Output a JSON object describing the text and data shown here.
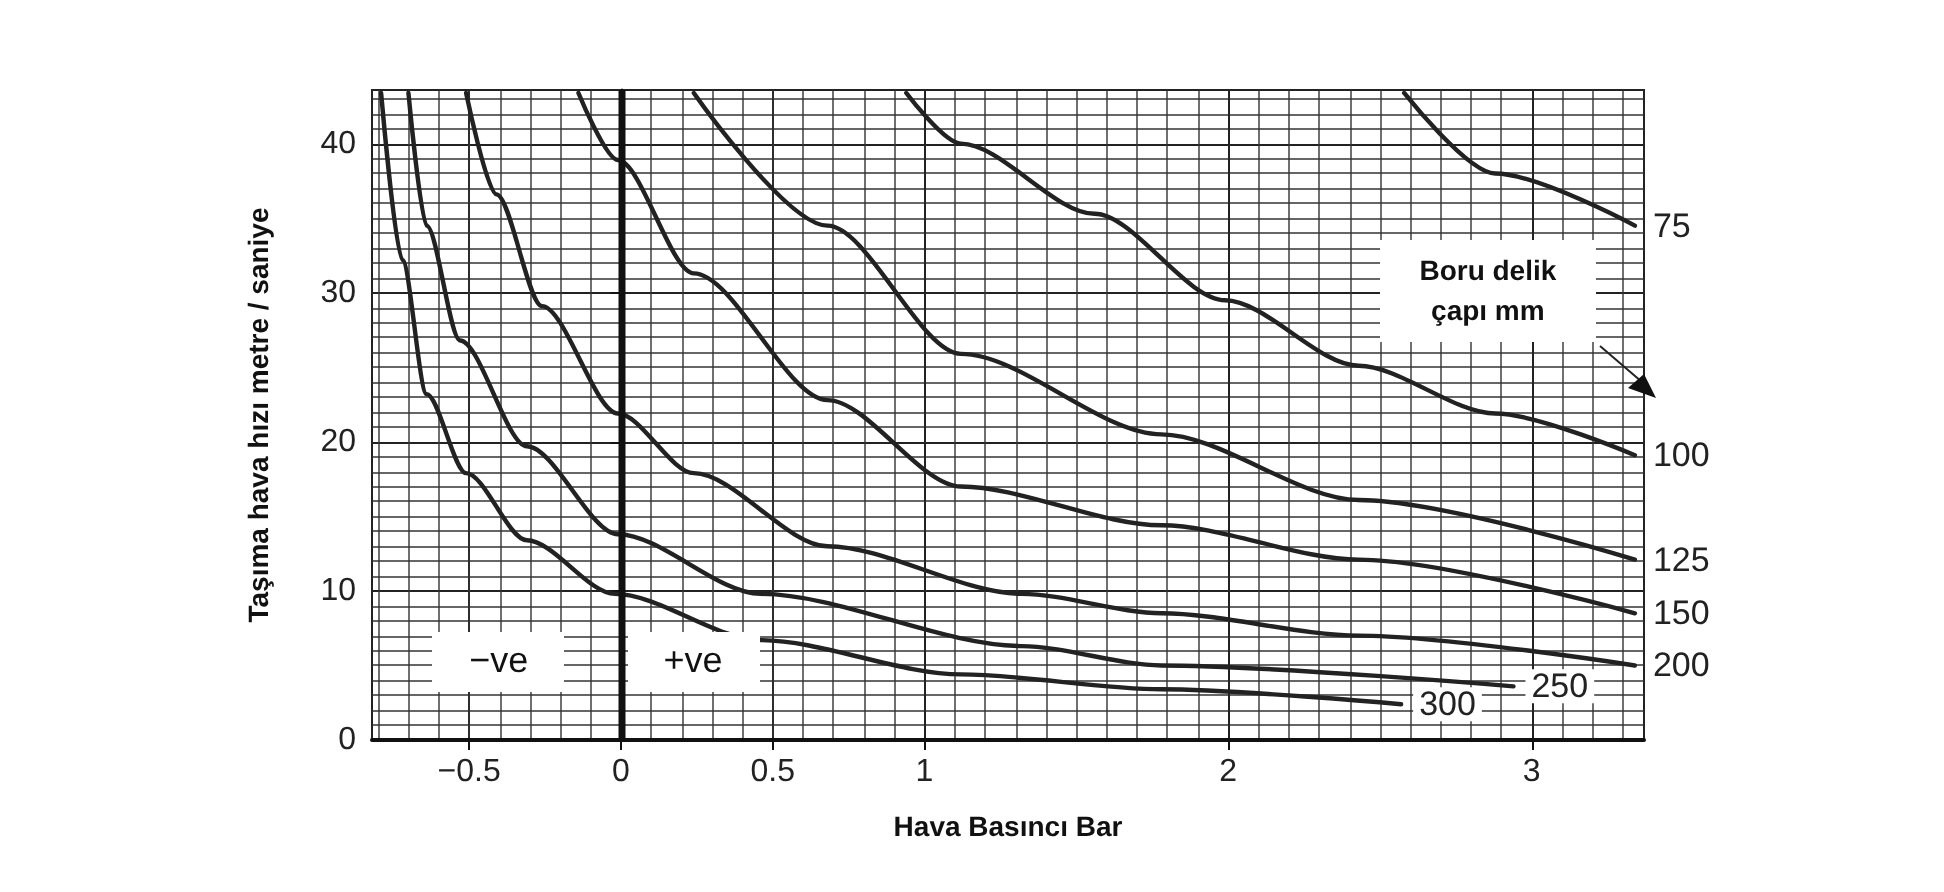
{
  "chart_data": {
    "type": "line",
    "xlabel": "Hava Basıncı Bar",
    "ylabel": "Taşıma hava hızı metre / saniye",
    "xlim": [
      -0.82,
      3.37
    ],
    "xticks": [
      -0.5,
      0,
      0.5,
      1,
      2,
      3
    ],
    "ylim": [
      0,
      43.6
    ],
    "yticks": [
      0,
      10,
      20,
      30,
      40
    ],
    "grid": true,
    "legend": false,
    "marker": "none",
    "line_style": "solid",
    "ref_lines": [
      {
        "axis": "x",
        "value": 0,
        "color": "#111111"
      }
    ],
    "annotations": [
      "Boru delik çapı mm",
      "−ve",
      "+ve"
    ],
    "series": [
      {
        "name": "75",
        "color": "#222222",
        "x": [
          2.58,
          2.88,
          3.34
        ],
        "values": [
          43.4,
          38.0,
          34.5
        ]
      },
      {
        "name": "100",
        "color": "#222222",
        "x": [
          0.94,
          1.12,
          1.56,
          1.99,
          2.43,
          2.88,
          3.34
        ],
        "values": [
          43.4,
          40.0,
          35.3,
          29.5,
          25.1,
          21.9,
          19.1
        ]
      },
      {
        "name": "125",
        "color": "#222222",
        "x": [
          0.24,
          0.68,
          1.12,
          1.78,
          2.43,
          3.34
        ],
        "values": [
          43.4,
          34.5,
          25.9,
          20.5,
          16.1,
          12.1
        ]
      },
      {
        "name": "150",
        "color": "#222222",
        "x": [
          -0.14,
          -0.01,
          0.24,
          0.68,
          1.12,
          1.78,
          2.43,
          3.34
        ],
        "values": [
          43.4,
          38.9,
          31.3,
          22.8,
          17.0,
          14.4,
          12.1,
          8.5
        ]
      },
      {
        "name": "200",
        "color": "#222222",
        "x": [
          -0.51,
          -0.41,
          -0.26,
          -0.01,
          0.24,
          0.68,
          1.32,
          1.78,
          2.43,
          3.34
        ],
        "values": [
          43.4,
          36.6,
          29.1,
          21.9,
          17.9,
          13.0,
          9.8,
          8.5,
          7.0,
          5.0
        ]
      },
      {
        "name": "250",
        "color": "#222222",
        "x": [
          -0.7,
          -0.64,
          -0.53,
          -0.31,
          -0.01,
          0.46,
          1.32,
          1.78,
          2.94
        ],
        "values": [
          43.4,
          34.5,
          26.8,
          19.7,
          13.8,
          9.8,
          6.3,
          5.0,
          3.6
        ]
      },
      {
        "name": "300",
        "color": "#222222",
        "x": [
          -0.79,
          -0.72,
          -0.64,
          -0.51,
          -0.31,
          -0.02,
          0.46,
          1.12,
          1.78,
          2.57
        ],
        "values": [
          43.4,
          32.2,
          23.2,
          17.9,
          13.4,
          9.8,
          6.7,
          4.4,
          3.4,
          2.4
        ]
      }
    ]
  }
}
